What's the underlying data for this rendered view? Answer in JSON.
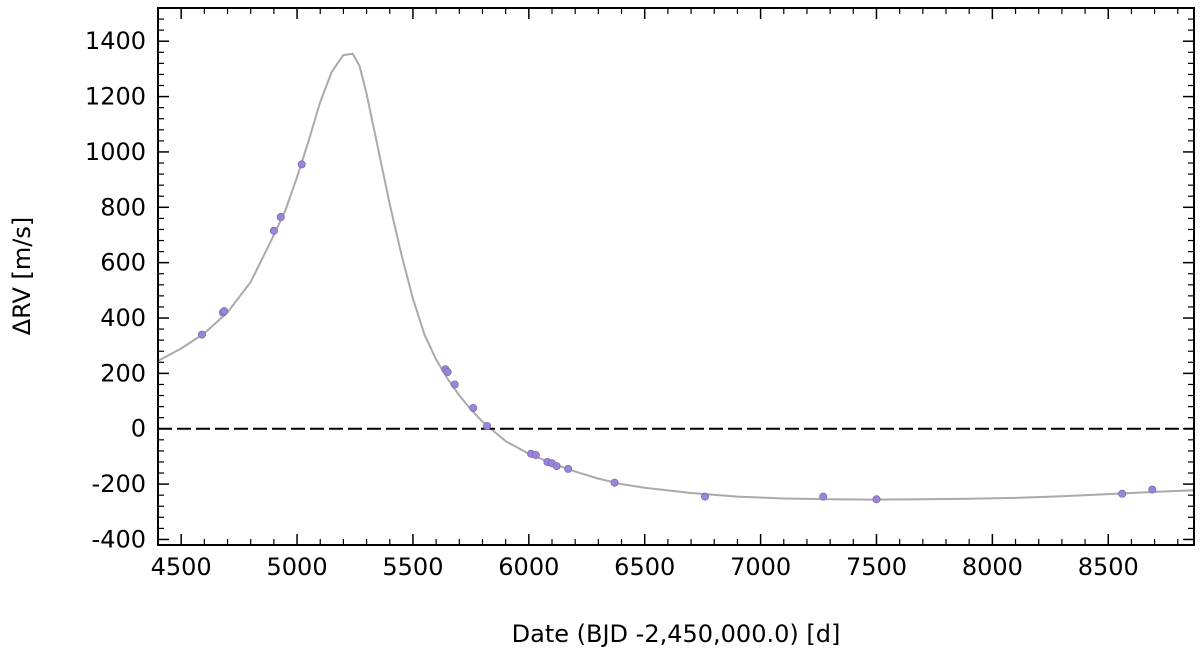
{
  "chart_data": {
    "type": "scatter",
    "title": "",
    "xlabel": "Date (BJD -2,450,000.0) [d]",
    "ylabel": "ΔRV [m/s]",
    "xlim": [
      4400,
      8870
    ],
    "ylim": [
      -420,
      1520
    ],
    "x_ticks": [
      4500,
      5000,
      5500,
      6000,
      6500,
      7000,
      7500,
      8000,
      8500
    ],
    "y_ticks": [
      -400,
      -200,
      0,
      200,
      400,
      600,
      800,
      1000,
      1200,
      1400
    ],
    "grid": false,
    "zero_line": {
      "y": 0,
      "style": "dashed",
      "color": "#000000"
    },
    "model_curve": {
      "color": "#aaaaaa",
      "points": [
        [
          4400,
          245
        ],
        [
          4500,
          290
        ],
        [
          4600,
          345
        ],
        [
          4700,
          420
        ],
        [
          4800,
          530
        ],
        [
          4900,
          700
        ],
        [
          4950,
          790
        ],
        [
          5000,
          910
        ],
        [
          5050,
          1040
        ],
        [
          5100,
          1180
        ],
        [
          5150,
          1290
        ],
        [
          5200,
          1350
        ],
        [
          5240,
          1355
        ],
        [
          5270,
          1310
        ],
        [
          5300,
          1210
        ],
        [
          5350,
          1010
        ],
        [
          5400,
          810
        ],
        [
          5450,
          630
        ],
        [
          5500,
          470
        ],
        [
          5550,
          340
        ],
        [
          5600,
          250
        ],
        [
          5650,
          180
        ],
        [
          5700,
          120
        ],
        [
          5750,
          70
        ],
        [
          5800,
          25
        ],
        [
          5850,
          -10
        ],
        [
          5900,
          -45
        ],
        [
          6000,
          -90
        ],
        [
          6100,
          -125
        ],
        [
          6200,
          -155
        ],
        [
          6300,
          -180
        ],
        [
          6400,
          -200
        ],
        [
          6500,
          -213
        ],
        [
          6700,
          -232
        ],
        [
          6900,
          -245
        ],
        [
          7100,
          -252
        ],
        [
          7300,
          -255
        ],
        [
          7500,
          -256
        ],
        [
          7700,
          -255
        ],
        [
          7900,
          -253
        ],
        [
          8100,
          -250
        ],
        [
          8300,
          -244
        ],
        [
          8500,
          -236
        ],
        [
          8700,
          -228
        ],
        [
          8870,
          -222
        ]
      ]
    },
    "series": [
      {
        "color": "#9b86d6",
        "points": [
          [
            4590,
            340
          ],
          [
            4680,
            420
          ],
          [
            4685,
            425
          ],
          [
            4900,
            715
          ],
          [
            4930,
            765
          ],
          [
            5020,
            955
          ],
          [
            5640,
            215
          ],
          [
            5650,
            205
          ],
          [
            5680,
            160
          ],
          [
            5760,
            75
          ],
          [
            5820,
            10
          ],
          [
            6010,
            -90
          ],
          [
            6030,
            -95
          ],
          [
            6080,
            -120
          ],
          [
            6100,
            -125
          ],
          [
            6120,
            -135
          ],
          [
            6170,
            -145
          ],
          [
            6370,
            -195
          ],
          [
            6760,
            -245
          ],
          [
            7270,
            -245
          ],
          [
            7500,
            -255
          ],
          [
            8560,
            -235
          ],
          [
            8690,
            -220
          ]
        ]
      }
    ]
  }
}
